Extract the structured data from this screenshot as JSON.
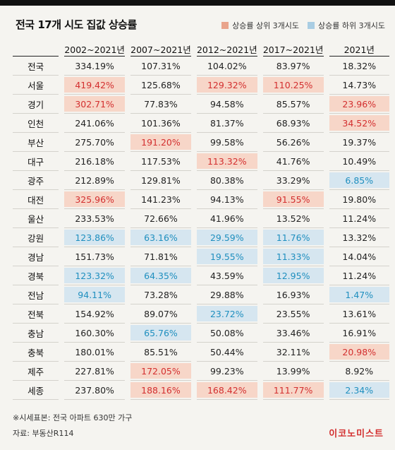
{
  "title": "전국 17개 시도 집값 상승률",
  "legend": {
    "top_label": "상승률 상위 3개시도",
    "bottom_label": "상승률 하위 3개시도"
  },
  "colors": {
    "top_fill": "#f7d6c8",
    "top_text": "#d32f2f",
    "bottom_fill": "#d6e6f0",
    "bottom_text": "#1f8fbf",
    "top_swatch": "#e9a48c",
    "bottom_swatch": "#a9cde3"
  },
  "chart_data": {
    "type": "table",
    "columns": [
      "2002~2021년",
      "2007~2021년",
      "2012~2021년",
      "2017~2021년",
      "2021년"
    ],
    "rows": [
      {
        "region": "전국",
        "values": [
          "334.19%",
          "107.31%",
          "104.02%",
          "83.97%",
          "18.32%"
        ],
        "marks": [
          "",
          "",
          "",
          "",
          ""
        ]
      },
      {
        "region": "서울",
        "values": [
          "419.42%",
          "125.68%",
          "129.32%",
          "110.25%",
          "14.73%"
        ],
        "marks": [
          "top",
          "",
          "top",
          "top",
          ""
        ]
      },
      {
        "region": "경기",
        "values": [
          "302.71%",
          "77.83%",
          "94.58%",
          "85.57%",
          "23.96%"
        ],
        "marks": [
          "top",
          "",
          "",
          "",
          "top"
        ]
      },
      {
        "region": "인천",
        "values": [
          "241.06%",
          "101.36%",
          "81.37%",
          "68.93%",
          "34.52%"
        ],
        "marks": [
          "",
          "",
          "",
          "",
          "top"
        ]
      },
      {
        "region": "부산",
        "values": [
          "275.70%",
          "191.20%",
          "99.58%",
          "56.26%",
          "19.37%"
        ],
        "marks": [
          "",
          "top",
          "",
          "",
          ""
        ]
      },
      {
        "region": "대구",
        "values": [
          "216.18%",
          "117.53%",
          "113.32%",
          "41.76%",
          "10.49%"
        ],
        "marks": [
          "",
          "",
          "top",
          "",
          ""
        ]
      },
      {
        "region": "광주",
        "values": [
          "212.89%",
          "129.81%",
          "80.38%",
          "33.29%",
          "6.85%"
        ],
        "marks": [
          "",
          "",
          "",
          "",
          "bottom"
        ]
      },
      {
        "region": "대전",
        "values": [
          "325.96%",
          "141.23%",
          "94.13%",
          "91.55%",
          "19.80%"
        ],
        "marks": [
          "top",
          "",
          "",
          "top",
          ""
        ]
      },
      {
        "region": "울산",
        "values": [
          "233.53%",
          "72.66%",
          "41.96%",
          "13.52%",
          "11.24%"
        ],
        "marks": [
          "",
          "",
          "",
          "",
          ""
        ]
      },
      {
        "region": "강원",
        "values": [
          "123.86%",
          "63.16%",
          "29.59%",
          "11.76%",
          "13.32%"
        ],
        "marks": [
          "bottom",
          "bottom",
          "bottom",
          "bottom",
          ""
        ]
      },
      {
        "region": "경남",
        "values": [
          "151.73%",
          "71.81%",
          "19.55%",
          "11.33%",
          "14.04%"
        ],
        "marks": [
          "",
          "",
          "bottom",
          "bottom",
          ""
        ]
      },
      {
        "region": "경북",
        "values": [
          "123.32%",
          "64.35%",
          "43.59%",
          "12.95%",
          "11.24%"
        ],
        "marks": [
          "bottom",
          "bottom",
          "",
          "bottom",
          ""
        ]
      },
      {
        "region": "전남",
        "values": [
          "94.11%",
          "73.28%",
          "29.88%",
          "16.93%",
          "1.47%"
        ],
        "marks": [
          "bottom",
          "",
          "",
          "",
          "bottom"
        ]
      },
      {
        "region": "전북",
        "values": [
          "154.92%",
          "89.07%",
          "23.72%",
          "23.55%",
          "13.61%"
        ],
        "marks": [
          "",
          "",
          "bottom",
          "",
          ""
        ]
      },
      {
        "region": "충남",
        "values": [
          "160.30%",
          "65.76%",
          "50.08%",
          "33.46%",
          "16.91%"
        ],
        "marks": [
          "",
          "bottom",
          "",
          "",
          ""
        ]
      },
      {
        "region": "충북",
        "values": [
          "180.01%",
          "85.51%",
          "50.44%",
          "32.11%",
          "20.98%"
        ],
        "marks": [
          "",
          "",
          "",
          "",
          "top"
        ]
      },
      {
        "region": "제주",
        "values": [
          "227.81%",
          "172.05%",
          "99.23%",
          "13.99%",
          "8.92%"
        ],
        "marks": [
          "",
          "top",
          "",
          "",
          ""
        ]
      },
      {
        "region": "세종",
        "values": [
          "237.80%",
          "188.16%",
          "168.42%",
          "111.77%",
          "2.34%"
        ],
        "marks": [
          "",
          "top",
          "top",
          "top",
          "bottom"
        ]
      }
    ]
  },
  "footnote": "※시세표본: 전국 아파트 630만 가구",
  "source": "자료: 부동산R114",
  "logo_text": "이코노미스트"
}
